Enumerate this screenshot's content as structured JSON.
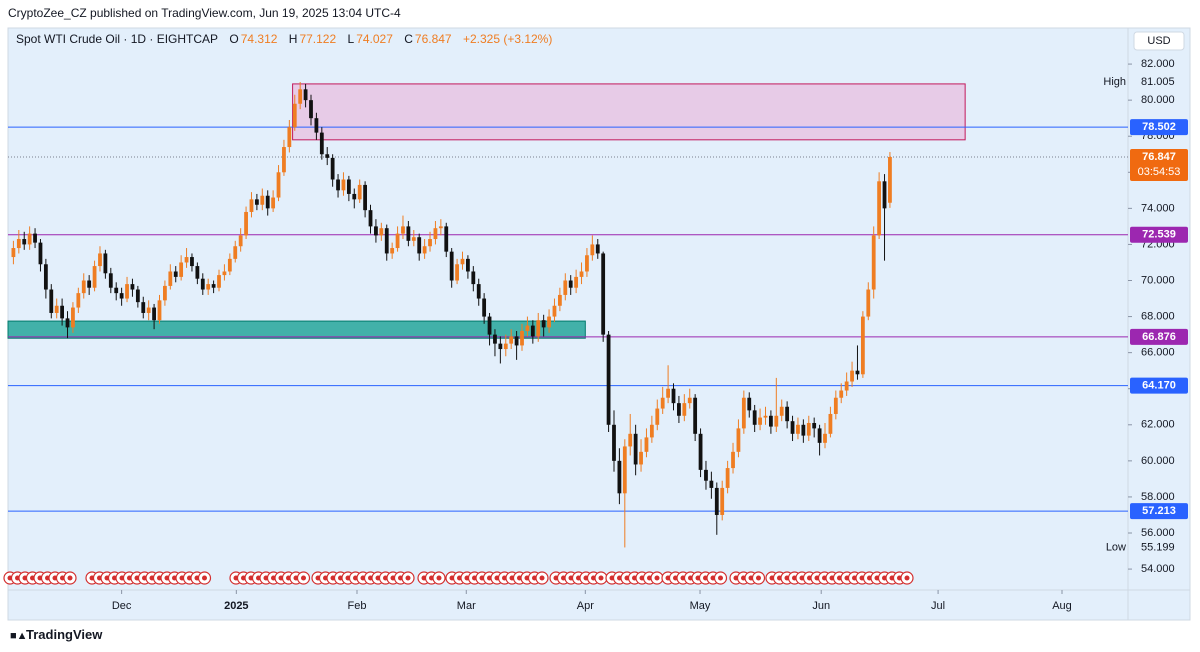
{
  "publisher": "CryptoZee_CZ published on TradingView.com, Jun 19, 2025 13:04 UTC-4",
  "footer": "TradingView",
  "chart_data": {
    "type": "candlestick",
    "symbol": "Spot WTI Crude Oil · 1D · EIGHTCAP",
    "legend_keys": [
      "O",
      "H",
      "L",
      "C"
    ],
    "change": "+2.325 (+3.12%)",
    "currency": "USD",
    "countdown": "03:54:53",
    "high_label": "High",
    "low_label": "Low",
    "up_color": "#ef7d22",
    "down_color": "#111111",
    "background": "#e3effb",
    "grid": false,
    "xlim": [
      -1,
      206
    ],
    "ylim": [
      52.84,
      84.0
    ],
    "xticks": [
      {
        "value": 20,
        "label": "Dec"
      },
      {
        "value": 41.2,
        "label": "2025"
      },
      {
        "value": 63.5,
        "label": "Feb"
      },
      {
        "value": 83.7,
        "label": "Mar"
      },
      {
        "value": 105.7,
        "label": "Apr"
      },
      {
        "value": 126.9,
        "label": "May"
      },
      {
        "value": 149.3,
        "label": "Jun"
      },
      {
        "value": 170.9,
        "label": "Jul"
      },
      {
        "value": 193.8,
        "label": "Aug"
      }
    ],
    "yticks": [
      {
        "value": 54,
        "label": "54.000"
      },
      {
        "value": 56,
        "label": "56.000"
      },
      {
        "value": 58,
        "label": "58.000"
      },
      {
        "value": 60,
        "label": "60.000"
      },
      {
        "value": 62,
        "label": "62.000"
      },
      {
        "value": 64,
        "label": "64.000"
      },
      {
        "value": 66,
        "label": "66.000"
      },
      {
        "value": 68,
        "label": "68.000"
      },
      {
        "value": 70,
        "label": "70.000"
      },
      {
        "value": 72,
        "label": "72.000"
      },
      {
        "value": 74,
        "label": "74.000"
      },
      {
        "value": 76,
        "label": "76.000"
      },
      {
        "value": 78,
        "label": "78.000"
      },
      {
        "value": 80,
        "label": "80.000"
      },
      {
        "value": 82,
        "label": "82.000"
      }
    ],
    "levels": [
      {
        "value": 78.502,
        "label": "78.502",
        "color": "#2962ff"
      },
      {
        "value": 72.539,
        "label": "72.539",
        "color": "#9c27b0"
      },
      {
        "value": 66.876,
        "label": "66.876",
        "color": "#9c27b0"
      },
      {
        "value": 64.17,
        "label": "64.170",
        "color": "#2962ff"
      },
      {
        "value": 57.213,
        "label": "57.213",
        "color": "#2962ff"
      }
    ],
    "zones": [
      {
        "x": [
          51.6,
          175.9
        ],
        "y": [
          77.8,
          80.9
        ],
        "color": "#e8bfe0",
        "border": "#c2185b"
      },
      {
        "x": [
          -1,
          105.7
        ],
        "y": [
          66.8,
          67.75
        ],
        "color": "#26a69a",
        "border": "#00796b"
      }
    ],
    "high_index": 53,
    "low_index": 113,
    "x": [
      0,
      1,
      2,
      3,
      4,
      5,
      6,
      7,
      8,
      9,
      10,
      11,
      12,
      13,
      14,
      15,
      16,
      17,
      18,
      19,
      20,
      21,
      22,
      23,
      24,
      25,
      26,
      27,
      28,
      29,
      30,
      31,
      32,
      33,
      34,
      35,
      36,
      37,
      38,
      39,
      40,
      41,
      42,
      43,
      44,
      45,
      46,
      47,
      48,
      49,
      50,
      51,
      52,
      53,
      54,
      55,
      56,
      57,
      58,
      59,
      60,
      61,
      62,
      63,
      64,
      65,
      66,
      67,
      68,
      69,
      70,
      71,
      72,
      73,
      74,
      75,
      76,
      77,
      78,
      79,
      80,
      81,
      82,
      83,
      84,
      85,
      86,
      87,
      88,
      89,
      90,
      91,
      92,
      93,
      94,
      95,
      96,
      97,
      98,
      99,
      100,
      101,
      102,
      103,
      104,
      105,
      106,
      107,
      108,
      109,
      110,
      111,
      112,
      113,
      114,
      115,
      116,
      117,
      118,
      119,
      120,
      121,
      122,
      123,
      124,
      125,
      126,
      127,
      128,
      129,
      130,
      131,
      132,
      133,
      134,
      135,
      136,
      137,
      138,
      139,
      140,
      141,
      142,
      143,
      144,
      145,
      146,
      147,
      148,
      149,
      150,
      151,
      152,
      153,
      154,
      155,
      156,
      157,
      158,
      159,
      160,
      161,
      162
    ],
    "ohlc": [
      [
        71.3,
        72.2,
        70.9,
        71.8
      ],
      [
        71.8,
        72.8,
        71.5,
        72.3
      ],
      [
        72.3,
        72.7,
        71.7,
        72.0
      ],
      [
        72.0,
        73.0,
        71.7,
        72.6
      ],
      [
        72.6,
        72.9,
        71.8,
        72.1
      ],
      [
        72.1,
        72.3,
        70.5,
        70.9
      ],
      [
        70.9,
        71.2,
        69.0,
        69.5
      ],
      [
        69.5,
        69.8,
        67.9,
        68.2
      ],
      [
        68.2,
        69.0,
        67.9,
        68.6
      ],
      [
        68.6,
        69.0,
        67.5,
        67.9
      ],
      [
        67.9,
        68.3,
        66.8,
        67.4
      ],
      [
        67.4,
        68.8,
        67.1,
        68.5
      ],
      [
        68.5,
        69.6,
        68.2,
        69.3
      ],
      [
        69.3,
        70.4,
        69.0,
        70.0
      ],
      [
        70.0,
        70.3,
        69.2,
        69.6
      ],
      [
        69.6,
        71.1,
        69.4,
        70.8
      ],
      [
        70.8,
        71.9,
        70.5,
        71.5
      ],
      [
        71.5,
        71.7,
        70.1,
        70.4
      ],
      [
        70.4,
        70.7,
        69.3,
        69.6
      ],
      [
        69.6,
        69.9,
        68.9,
        69.3
      ],
      [
        69.3,
        69.6,
        68.6,
        69.0
      ],
      [
        69.0,
        70.2,
        68.8,
        69.8
      ],
      [
        69.8,
        70.1,
        69.1,
        69.5
      ],
      [
        69.5,
        69.7,
        68.5,
        68.8
      ],
      [
        68.8,
        69.1,
        67.9,
        68.2
      ],
      [
        68.2,
        68.9,
        67.8,
        68.5
      ],
      [
        68.5,
        68.7,
        67.3,
        67.8
      ],
      [
        67.8,
        69.2,
        67.6,
        68.9
      ],
      [
        68.9,
        70.0,
        68.6,
        69.7
      ],
      [
        69.7,
        70.9,
        69.5,
        70.5
      ],
      [
        70.5,
        70.8,
        69.9,
        70.2
      ],
      [
        70.2,
        71.4,
        70.0,
        71.0
      ],
      [
        71.0,
        71.8,
        70.7,
        71.3
      ],
      [
        71.3,
        71.5,
        70.5,
        70.8
      ],
      [
        70.8,
        71.0,
        69.8,
        70.1
      ],
      [
        70.1,
        70.4,
        69.2,
        69.5
      ],
      [
        69.5,
        70.1,
        69.2,
        69.8
      ],
      [
        69.8,
        70.0,
        69.3,
        69.6
      ],
      [
        69.6,
        70.6,
        69.4,
        70.3
      ],
      [
        70.3,
        70.9,
        70.0,
        70.5
      ],
      [
        70.5,
        71.5,
        70.3,
        71.2
      ],
      [
        71.2,
        72.2,
        71.0,
        71.9
      ],
      [
        71.9,
        72.9,
        71.6,
        72.5
      ],
      [
        72.5,
        74.1,
        72.3,
        73.8
      ],
      [
        73.8,
        74.9,
        73.5,
        74.5
      ],
      [
        74.5,
        74.8,
        73.9,
        74.2
      ],
      [
        74.2,
        75.1,
        73.9,
        74.7
      ],
      [
        74.7,
        75.0,
        73.6,
        74.0
      ],
      [
        74.0,
        75.0,
        73.8,
        74.6
      ],
      [
        74.6,
        76.4,
        74.4,
        76.0
      ],
      [
        76.0,
        77.8,
        75.8,
        77.4
      ],
      [
        77.4,
        78.9,
        77.1,
        78.5
      ],
      [
        78.5,
        80.3,
        78.3,
        79.8
      ],
      [
        79.8,
        81.005,
        79.5,
        80.6
      ],
      [
        80.6,
        80.9,
        79.6,
        80.0
      ],
      [
        80.0,
        80.3,
        78.6,
        79.0
      ],
      [
        79.0,
        79.3,
        77.8,
        78.2
      ],
      [
        78.2,
        78.5,
        76.7,
        77.0
      ],
      [
        77.0,
        77.4,
        76.4,
        76.8
      ],
      [
        76.8,
        77.0,
        75.2,
        75.6
      ],
      [
        75.6,
        75.9,
        74.6,
        75.0
      ],
      [
        75.0,
        76.0,
        74.7,
        75.6
      ],
      [
        75.6,
        75.8,
        74.4,
        74.8
      ],
      [
        74.8,
        75.1,
        74.0,
        74.5
      ],
      [
        74.5,
        75.6,
        74.3,
        75.3
      ],
      [
        75.3,
        75.5,
        73.5,
        73.9
      ],
      [
        73.9,
        74.2,
        72.6,
        73.0
      ],
      [
        73.0,
        73.4,
        72.1,
        72.5
      ],
      [
        72.5,
        73.2,
        72.2,
        72.9
      ],
      [
        72.9,
        73.1,
        71.1,
        71.5
      ],
      [
        71.5,
        72.1,
        71.2,
        71.8
      ],
      [
        71.8,
        73.0,
        71.6,
        72.6
      ],
      [
        72.6,
        73.6,
        72.3,
        73.0
      ],
      [
        73.0,
        73.3,
        71.9,
        72.2
      ],
      [
        72.2,
        72.8,
        71.9,
        72.4
      ],
      [
        72.4,
        72.6,
        71.1,
        71.5
      ],
      [
        71.5,
        72.3,
        71.2,
        71.9
      ],
      [
        71.9,
        72.7,
        71.6,
        72.3
      ],
      [
        72.3,
        73.3,
        72.0,
        72.9
      ],
      [
        72.9,
        73.4,
        72.5,
        73.0
      ],
      [
        73.0,
        73.2,
        71.3,
        71.6
      ],
      [
        71.6,
        71.8,
        69.6,
        70.0
      ],
      [
        70.0,
        71.2,
        69.8,
        70.9
      ],
      [
        70.9,
        71.6,
        70.6,
        71.2
      ],
      [
        71.2,
        71.4,
        70.1,
        70.5
      ],
      [
        70.5,
        70.8,
        69.4,
        69.8
      ],
      [
        69.8,
        70.1,
        68.6,
        69.0
      ],
      [
        69.0,
        69.3,
        67.6,
        68.0
      ],
      [
        68.0,
        68.2,
        66.4,
        67.0
      ],
      [
        67.0,
        67.3,
        65.8,
        66.5
      ],
      [
        66.5,
        66.9,
        65.4,
        66.2
      ],
      [
        66.2,
        67.0,
        65.8,
        66.5
      ],
      [
        66.5,
        67.3,
        66.2,
        66.9
      ],
      [
        66.9,
        67.2,
        65.6,
        66.4
      ],
      [
        66.4,
        67.6,
        66.1,
        67.2
      ],
      [
        67.2,
        68.0,
        66.9,
        67.5
      ],
      [
        67.5,
        67.8,
        66.5,
        66.9
      ],
      [
        66.9,
        68.2,
        66.6,
        67.8
      ],
      [
        67.8,
        68.1,
        66.9,
        67.4
      ],
      [
        67.4,
        68.4,
        67.1,
        68.0
      ],
      [
        68.0,
        69.0,
        67.7,
        68.6
      ],
      [
        68.6,
        69.6,
        68.3,
        69.2
      ],
      [
        69.2,
        70.4,
        68.9,
        70.0
      ],
      [
        70.0,
        70.3,
        69.2,
        69.6
      ],
      [
        69.6,
        70.6,
        69.3,
        70.2
      ],
      [
        70.2,
        71.0,
        69.8,
        70.5
      ],
      [
        70.5,
        71.8,
        70.2,
        71.4
      ],
      [
        71.4,
        72.5,
        71.1,
        72.0
      ],
      [
        72.0,
        72.3,
        71.2,
        71.5
      ],
      [
        71.5,
        71.6,
        66.6,
        67.0
      ],
      [
        67.0,
        67.2,
        61.6,
        62.0
      ],
      [
        62.0,
        62.8,
        59.4,
        60.0
      ],
      [
        60.0,
        60.7,
        57.6,
        58.2
      ],
      [
        58.2,
        61.2,
        55.199,
        60.8
      ],
      [
        60.8,
        62.6,
        60.3,
        61.5
      ],
      [
        61.5,
        62.0,
        59.2,
        59.8
      ],
      [
        59.8,
        61.2,
        59.4,
        60.5
      ],
      [
        60.5,
        61.8,
        60.2,
        61.3
      ],
      [
        61.3,
        62.5,
        61.0,
        62.0
      ],
      [
        62.0,
        63.4,
        61.7,
        62.9
      ],
      [
        62.9,
        64.1,
        62.6,
        63.5
      ],
      [
        63.5,
        65.3,
        63.2,
        64.0
      ],
      [
        64.0,
        64.3,
        62.8,
        63.2
      ],
      [
        63.2,
        63.6,
        62.1,
        62.5
      ],
      [
        62.5,
        63.7,
        62.2,
        63.2
      ],
      [
        63.2,
        64.0,
        62.9,
        63.5
      ],
      [
        63.5,
        63.7,
        61.1,
        61.5
      ],
      [
        61.5,
        61.8,
        59.1,
        59.5
      ],
      [
        59.5,
        60.0,
        58.4,
        58.9
      ],
      [
        58.9,
        59.4,
        57.9,
        58.5
      ],
      [
        58.5,
        58.8,
        55.9,
        57.0
      ],
      [
        57.0,
        58.9,
        56.7,
        58.5
      ],
      [
        58.5,
        60.0,
        58.2,
        59.6
      ],
      [
        59.6,
        61.0,
        59.3,
        60.5
      ],
      [
        60.5,
        62.3,
        60.2,
        61.8
      ],
      [
        61.8,
        63.9,
        61.5,
        63.5
      ],
      [
        63.5,
        63.8,
        62.4,
        62.8
      ],
      [
        62.8,
        63.1,
        61.6,
        62.0
      ],
      [
        62.0,
        62.9,
        61.7,
        62.4
      ],
      [
        62.4,
        63.0,
        62.0,
        62.5
      ],
      [
        62.5,
        62.8,
        61.5,
        61.9
      ],
      [
        61.9,
        64.6,
        61.6,
        62.5
      ],
      [
        62.5,
        63.4,
        62.2,
        63.0
      ],
      [
        63.0,
        63.3,
        61.8,
        62.2
      ],
      [
        62.2,
        62.5,
        61.1,
        61.5
      ],
      [
        61.5,
        62.4,
        61.2,
        62.0
      ],
      [
        62.0,
        62.3,
        61.0,
        61.4
      ],
      [
        61.4,
        62.5,
        61.1,
        62.1
      ],
      [
        62.1,
        62.4,
        61.3,
        61.8
      ],
      [
        61.8,
        62.0,
        60.3,
        61.0
      ],
      [
        61.0,
        62.1,
        60.7,
        61.5
      ],
      [
        61.5,
        63.0,
        61.3,
        62.6
      ],
      [
        62.6,
        63.9,
        62.3,
        63.5
      ],
      [
        63.5,
        64.3,
        63.2,
        63.9
      ],
      [
        63.9,
        64.9,
        63.6,
        64.4
      ],
      [
        64.4,
        65.5,
        64.1,
        65.0
      ],
      [
        65.0,
        66.4,
        64.5,
        64.8
      ],
      [
        64.8,
        68.3,
        64.6,
        68.0
      ],
      [
        68.0,
        69.9,
        67.8,
        69.5
      ],
      [
        69.5,
        73.0,
        69.0,
        72.5
      ],
      [
        72.5,
        76.0,
        72.3,
        75.5
      ],
      [
        75.5,
        75.9,
        71.1,
        74.0
      ],
      [
        74.312,
        77.122,
        74.027,
        76.847
      ]
    ]
  }
}
